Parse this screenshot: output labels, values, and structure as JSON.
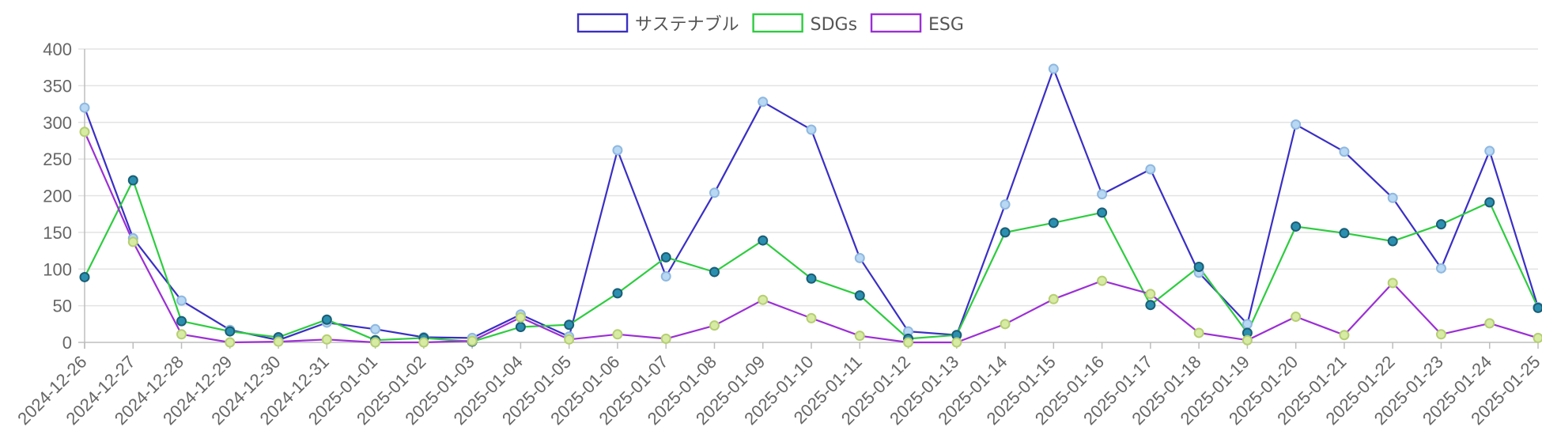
{
  "chart_data": {
    "type": "line",
    "title": "",
    "xlabel": "",
    "ylabel": "",
    "ylim": [
      0,
      400
    ],
    "yticks": [
      0,
      50,
      100,
      150,
      200,
      250,
      300,
      350,
      400
    ],
    "grid": true,
    "legend_position": "top-center",
    "categories": [
      "2024-12-26",
      "2024-12-27",
      "2024-12-28",
      "2024-12-29",
      "2024-12-30",
      "2024-12-31",
      "2025-01-01",
      "2025-01-02",
      "2025-01-03",
      "2025-01-04",
      "2025-01-05",
      "2025-01-06",
      "2025-01-07",
      "2025-01-08",
      "2025-01-09",
      "2025-01-10",
      "2025-01-11",
      "2025-01-12",
      "2025-01-13",
      "2025-01-14",
      "2025-01-15",
      "2025-01-16",
      "2025-01-17",
      "2025-01-18",
      "2025-01-19",
      "2025-01-20",
      "2025-01-21",
      "2025-01-22",
      "2025-01-23",
      "2025-01-24",
      "2025-01-25"
    ],
    "series": [
      {
        "name": "サステナブル",
        "color": "#3a2fc4",
        "point_fill": "#b8d8f3",
        "point_stroke": "#8fb8e0",
        "values": [
          320,
          142,
          57,
          17,
          3,
          27,
          18,
          7,
          6,
          38,
          8,
          262,
          90,
          204,
          328,
          290,
          115,
          15,
          10,
          188,
          373,
          202,
          236,
          95,
          25,
          297,
          260,
          197,
          101,
          261,
          48
        ]
      },
      {
        "name": "SDGs",
        "color": "#2ecc40",
        "point_fill": "#2b8fb0",
        "point_stroke": "#1a5e75",
        "values": [
          89,
          221,
          29,
          15,
          7,
          31,
          3,
          6,
          1,
          21,
          24,
          67,
          116,
          96,
          139,
          87,
          64,
          5,
          10,
          150,
          163,
          177,
          51,
          103,
          13,
          158,
          149,
          138,
          161,
          191,
          47
        ]
      },
      {
        "name": "ESG",
        "color": "#9b2fd4",
        "point_fill": "#d8eba4",
        "point_stroke": "#b5cf72",
        "values": [
          287,
          137,
          11,
          0,
          1,
          4,
          0,
          0,
          2,
          34,
          4,
          11,
          5,
          23,
          58,
          33,
          9,
          0,
          0,
          25,
          59,
          84,
          66,
          13,
          3,
          35,
          10,
          81,
          11,
          26,
          6
        ]
      }
    ]
  }
}
